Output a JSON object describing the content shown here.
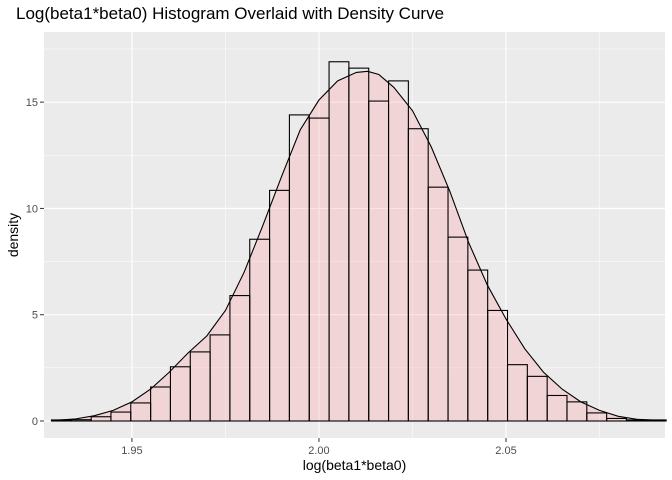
{
  "chart_data": {
    "type": "bar",
    "title": "Log(beta1*beta0) Histogram Overlaid with Density Curve",
    "xlabel": "log(beta1*beta0)",
    "ylabel": "density",
    "xlim": [
      1.9265,
      2.0925
    ],
    "ylim": [
      -0.8,
      18.3
    ],
    "x_ticks": [
      1.95,
      2.0,
      2.05
    ],
    "x_tick_labels": [
      "1.95",
      "2.00",
      "2.05"
    ],
    "y_ticks": [
      0,
      5,
      10,
      15
    ],
    "y_tick_labels": [
      "0",
      "5",
      "10",
      "15"
    ],
    "grid": true,
    "bin_width": 0.0053,
    "histogram": {
      "bin_left": [
        1.9285,
        1.9338,
        1.9391,
        1.9444,
        1.9497,
        1.955,
        1.9603,
        1.9656,
        1.9709,
        1.9762,
        1.9815,
        1.9868,
        1.9921,
        1.9974,
        2.0027,
        2.008,
        2.0133,
        2.0186,
        2.0239,
        2.0292,
        2.0345,
        2.0398,
        2.0451,
        2.0504,
        2.0557,
        2.061,
        2.0663,
        2.0716,
        2.0769,
        2.0822,
        2.0875
      ],
      "density": [
        0.05,
        0.06,
        0.2,
        0.42,
        0.85,
        1.6,
        2.55,
        3.25,
        4.05,
        5.9,
        8.55,
        10.85,
        14.4,
        14.25,
        16.9,
        16.6,
        15.05,
        16.0,
        13.75,
        11.0,
        8.65,
        7.1,
        5.2,
        2.65,
        2.1,
        1.2,
        0.9,
        0.38,
        0.12,
        0.05,
        0.05
      ]
    },
    "density_curve": {
      "x": [
        1.9285,
        1.935,
        1.94,
        1.945,
        1.95,
        1.955,
        1.96,
        1.965,
        1.97,
        1.975,
        1.98,
        1.985,
        1.99,
        1.995,
        2.0,
        2.005,
        2.01,
        2.013,
        2.016,
        2.02,
        2.025,
        2.03,
        2.035,
        2.04,
        2.045,
        2.05,
        2.055,
        2.06,
        2.065,
        2.07,
        2.075,
        2.08,
        2.085,
        2.0905
      ],
      "y": [
        0.02,
        0.1,
        0.25,
        0.5,
        0.9,
        1.5,
        2.3,
        3.2,
        4.0,
        5.2,
        7.0,
        9.2,
        11.5,
        13.7,
        15.1,
        16.0,
        16.4,
        16.45,
        16.3,
        15.7,
        14.6,
        12.9,
        10.8,
        8.4,
        6.4,
        4.8,
        3.4,
        2.3,
        1.5,
        0.9,
        0.5,
        0.22,
        0.08,
        0.03
      ]
    },
    "colors": {
      "panel_background": "#ebebeb",
      "grid_major": "#ffffff",
      "bar_outline": "#000000",
      "bar_fill": "none",
      "density_fill": "#ff8f99",
      "density_fill_opacity": "0.25",
      "density_line": "#000000",
      "tick_mark": "#333333"
    }
  }
}
